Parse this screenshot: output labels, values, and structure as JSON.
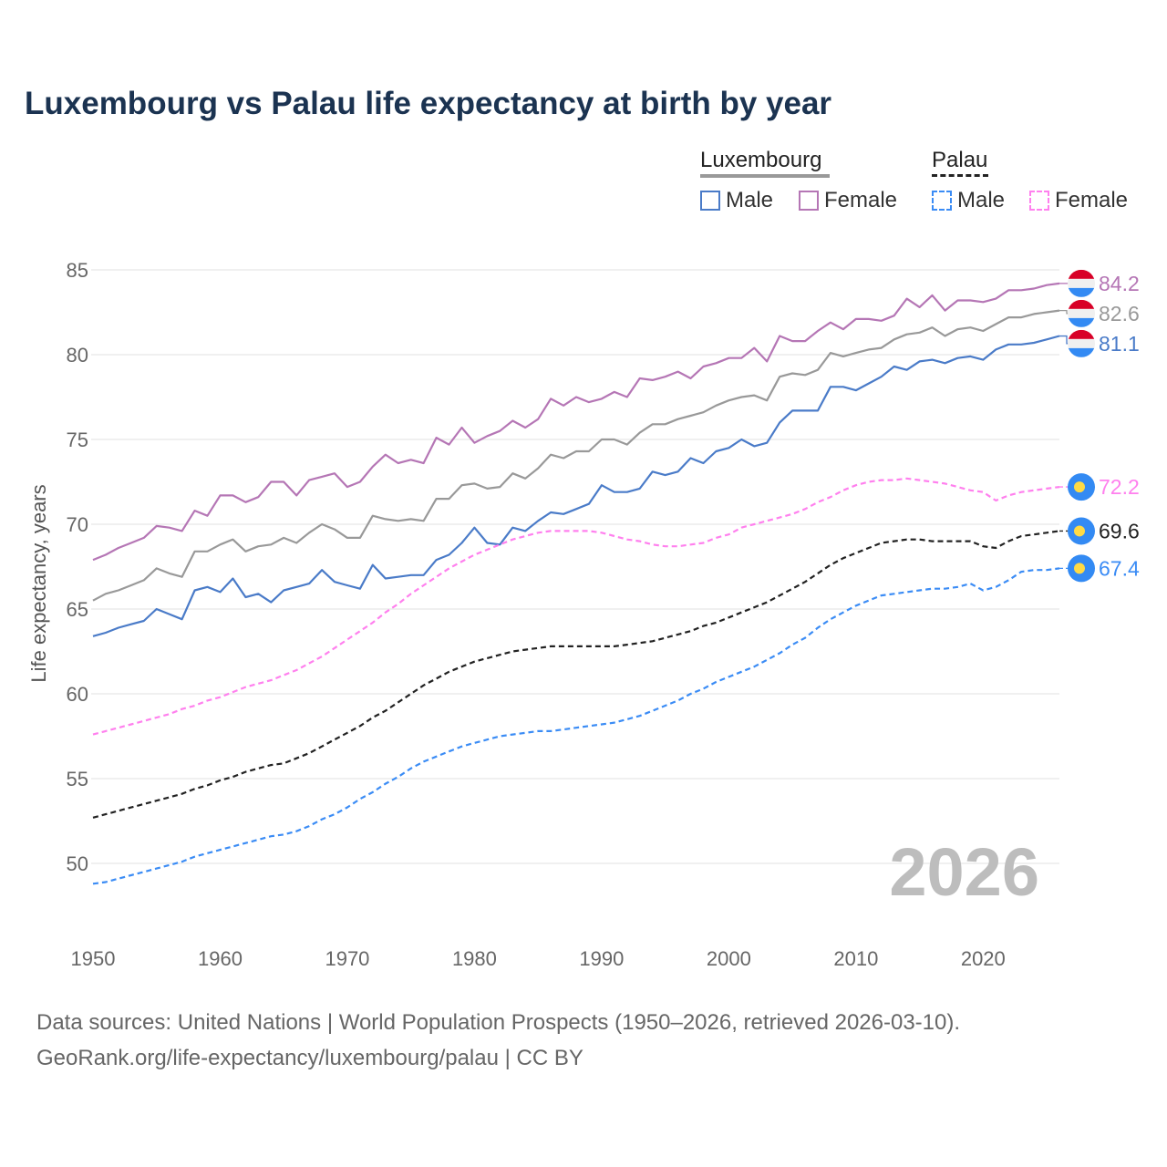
{
  "chart_data": {
    "type": "line",
    "title": "Luxembourg vs Palau life expectancy at birth by year",
    "xlabel": "",
    "ylabel": "Life expectancy, years",
    "xlim": [
      1950,
      2026
    ],
    "ylim": [
      47.5,
      87
    ],
    "x_ticks": [
      1950,
      1960,
      1970,
      1980,
      1990,
      2000,
      2010,
      2020
    ],
    "y_ticks": [
      50,
      55,
      60,
      65,
      70,
      75,
      80,
      85
    ],
    "grid": true,
    "watermark_year": "2026",
    "x_start": 1950,
    "legend": {
      "placement": "top-right",
      "groups": [
        {
          "name": "Luxembourg",
          "items": [
            "Male",
            "Female"
          ]
        },
        {
          "name": "Palau",
          "items": [
            "Male",
            "Female"
          ]
        }
      ]
    },
    "series": [
      {
        "id": "lux-female",
        "country": "Luxembourg",
        "sex": "Female",
        "color": "#b576b5",
        "dash": false,
        "flag": "luxembourg",
        "end_label": "84.2",
        "values": [
          67.9,
          68.2,
          68.6,
          68.9,
          69.2,
          69.9,
          69.8,
          69.6,
          70.8,
          70.5,
          71.7,
          71.7,
          71.3,
          71.6,
          72.5,
          72.5,
          71.7,
          72.6,
          72.8,
          73.0,
          72.2,
          72.5,
          73.4,
          74.1,
          73.6,
          73.8,
          73.6,
          75.1,
          74.7,
          75.7,
          74.8,
          75.2,
          75.5,
          76.1,
          75.7,
          76.2,
          77.4,
          77.0,
          77.5,
          77.2,
          77.4,
          77.8,
          77.5,
          78.6,
          78.5,
          78.7,
          79.0,
          78.6,
          79.3,
          79.5,
          79.8,
          79.8,
          80.4,
          79.6,
          81.1,
          80.8,
          80.8,
          81.4,
          81.9,
          81.5,
          82.1,
          82.1,
          82.0,
          82.3,
          83.3,
          82.8,
          83.5,
          82.6,
          83.2,
          83.2,
          83.1,
          83.3,
          83.8,
          83.8,
          83.9,
          84.1,
          84.2
        ]
      },
      {
        "id": "lux-total",
        "country": "Luxembourg",
        "sex": "Total",
        "color": "#999999",
        "dash": false,
        "flag": "luxembourg",
        "end_label": "82.6",
        "values": [
          65.5,
          65.9,
          66.1,
          66.4,
          66.7,
          67.4,
          67.1,
          66.9,
          68.4,
          68.4,
          68.8,
          69.1,
          68.4,
          68.7,
          68.8,
          69.2,
          68.9,
          69.5,
          70.0,
          69.7,
          69.2,
          69.2,
          70.5,
          70.3,
          70.2,
          70.3,
          70.2,
          71.5,
          71.5,
          72.3,
          72.4,
          72.1,
          72.2,
          73.0,
          72.7,
          73.3,
          74.1,
          73.9,
          74.3,
          74.3,
          75.0,
          75.0,
          74.7,
          75.4,
          75.9,
          75.9,
          76.2,
          76.4,
          76.6,
          77.0,
          77.3,
          77.5,
          77.6,
          77.3,
          78.7,
          78.9,
          78.8,
          79.1,
          80.1,
          79.9,
          80.1,
          80.3,
          80.4,
          80.9,
          81.2,
          81.3,
          81.6,
          81.1,
          81.5,
          81.6,
          81.4,
          81.8,
          82.2,
          82.2,
          82.4,
          82.5,
          82.6
        ]
      },
      {
        "id": "lux-male",
        "country": "Luxembourg",
        "sex": "Male",
        "color": "#4a7bc8",
        "dash": false,
        "flag": "luxembourg",
        "end_label": "81.1",
        "values": [
          63.4,
          63.6,
          63.9,
          64.1,
          64.3,
          65.0,
          64.7,
          64.4,
          66.1,
          66.3,
          66.0,
          66.8,
          65.7,
          65.9,
          65.4,
          66.1,
          66.3,
          66.5,
          67.3,
          66.6,
          66.4,
          66.2,
          67.6,
          66.8,
          66.9,
          67.0,
          67.0,
          67.9,
          68.2,
          68.9,
          69.8,
          68.9,
          68.8,
          69.8,
          69.6,
          70.2,
          70.7,
          70.6,
          70.9,
          71.2,
          72.3,
          71.9,
          71.9,
          72.1,
          73.1,
          72.9,
          73.1,
          73.9,
          73.6,
          74.3,
          74.5,
          75.0,
          74.6,
          74.8,
          76.0,
          76.7,
          76.7,
          76.7,
          78.1,
          78.1,
          77.9,
          78.3,
          78.7,
          79.3,
          79.1,
          79.6,
          79.7,
          79.5,
          79.8,
          79.9,
          79.7,
          80.3,
          80.6,
          80.6,
          80.7,
          80.9,
          81.1
        ]
      },
      {
        "id": "palau-female",
        "country": "Palau",
        "sex": "Female",
        "color": "#ff80ee",
        "dash": true,
        "flag": "palau",
        "end_label": "72.2",
        "values": [
          57.6,
          57.8,
          58.0,
          58.2,
          58.4,
          58.6,
          58.8,
          59.1,
          59.3,
          59.6,
          59.8,
          60.1,
          60.4,
          60.6,
          60.8,
          61.1,
          61.4,
          61.8,
          62.2,
          62.7,
          63.2,
          63.7,
          64.2,
          64.8,
          65.3,
          65.9,
          66.4,
          66.9,
          67.4,
          67.8,
          68.2,
          68.5,
          68.8,
          69.1,
          69.3,
          69.5,
          69.6,
          69.6,
          69.6,
          69.6,
          69.5,
          69.3,
          69.1,
          69.0,
          68.8,
          68.7,
          68.7,
          68.8,
          68.9,
          69.2,
          69.4,
          69.8,
          70.0,
          70.2,
          70.4,
          70.6,
          70.9,
          71.3,
          71.6,
          72.0,
          72.3,
          72.5,
          72.6,
          72.6,
          72.7,
          72.6,
          72.5,
          72.4,
          72.2,
          72.0,
          71.9,
          71.4,
          71.7,
          71.9,
          72.0,
          72.1,
          72.2
        ]
      },
      {
        "id": "palau-total",
        "country": "Palau",
        "sex": "Total",
        "color": "#222222",
        "dash": true,
        "flag": "palau",
        "end_label": "69.6",
        "values": [
          52.7,
          52.9,
          53.1,
          53.3,
          53.5,
          53.7,
          53.9,
          54.1,
          54.4,
          54.6,
          54.9,
          55.1,
          55.4,
          55.6,
          55.8,
          55.9,
          56.2,
          56.5,
          56.9,
          57.3,
          57.7,
          58.1,
          58.6,
          59.0,
          59.5,
          60.0,
          60.5,
          60.9,
          61.3,
          61.6,
          61.9,
          62.1,
          62.3,
          62.5,
          62.6,
          62.7,
          62.8,
          62.8,
          62.8,
          62.8,
          62.8,
          62.8,
          62.9,
          63.0,
          63.1,
          63.3,
          63.5,
          63.7,
          64.0,
          64.2,
          64.5,
          64.8,
          65.1,
          65.4,
          65.8,
          66.2,
          66.6,
          67.1,
          67.6,
          68.0,
          68.3,
          68.6,
          68.9,
          69.0,
          69.1,
          69.1,
          69.0,
          69.0,
          69.0,
          69.0,
          68.7,
          68.6,
          69.0,
          69.3,
          69.4,
          69.5,
          69.6
        ]
      },
      {
        "id": "palau-male",
        "country": "Palau",
        "sex": "Male",
        "color": "#3b8cf5",
        "dash": true,
        "flag": "palau",
        "end_label": "67.4",
        "values": [
          48.8,
          48.9,
          49.1,
          49.3,
          49.5,
          49.7,
          49.9,
          50.1,
          50.4,
          50.6,
          50.8,
          51.0,
          51.2,
          51.4,
          51.6,
          51.7,
          51.9,
          52.2,
          52.6,
          52.9,
          53.3,
          53.8,
          54.2,
          54.7,
          55.1,
          55.6,
          56.0,
          56.3,
          56.6,
          56.9,
          57.1,
          57.3,
          57.5,
          57.6,
          57.7,
          57.8,
          57.8,
          57.9,
          58.0,
          58.1,
          58.2,
          58.3,
          58.5,
          58.7,
          59.0,
          59.3,
          59.6,
          60.0,
          60.3,
          60.7,
          61.0,
          61.3,
          61.6,
          62.0,
          62.4,
          62.9,
          63.3,
          63.9,
          64.4,
          64.8,
          65.2,
          65.5,
          65.8,
          65.9,
          66.0,
          66.1,
          66.2,
          66.2,
          66.3,
          66.5,
          66.1,
          66.3,
          66.7,
          67.2,
          67.3,
          67.3,
          67.4
        ]
      }
    ]
  },
  "legend_colors": {
    "luxembourg_group": "#999999",
    "palau_group": "#222222",
    "lux_male": "#4a7bc8",
    "lux_female": "#b576b5",
    "palau_male": "#3b8cf5",
    "palau_female": "#ff80ee"
  },
  "footer": {
    "line1": "Data sources: United Nations | World Population Prospects (1950–2026, retrieved 2026-03-10).",
    "line2": "GeoRank.org/life-expectancy/luxembourg/palau | CC BY"
  }
}
